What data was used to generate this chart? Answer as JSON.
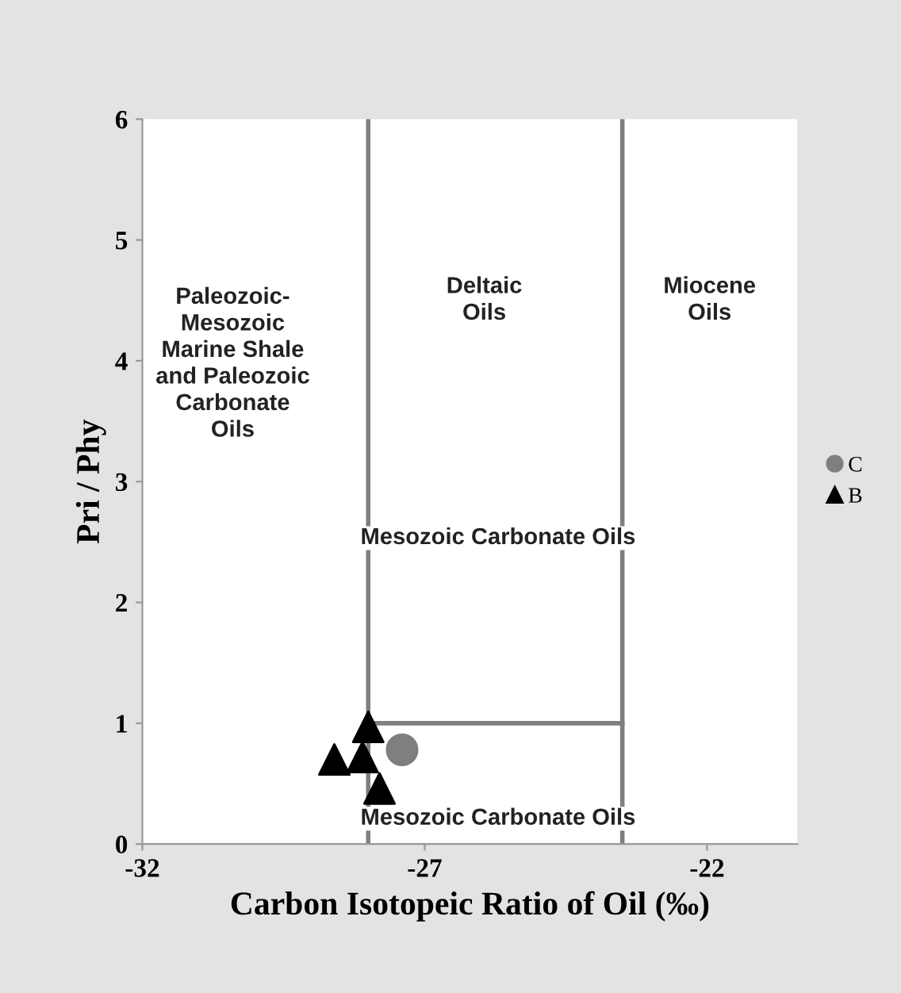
{
  "chart_data": {
    "type": "scatter",
    "xlabel": "Carbon Isotopeic Ratio of Oil (‰)",
    "ylabel": "Pri / Phy",
    "series": [
      {
        "name": "C",
        "color": "#7f7f7f",
        "marker": "circle",
        "x": [
          -27.4
        ],
        "values": [
          0.78
        ]
      },
      {
        "name": "B",
        "color": "#000000",
        "marker": "triangle",
        "x": [
          -28.0,
          -28.6,
          -28.1,
          -27.8
        ],
        "values": [
          0.97,
          0.7,
          0.72,
          0.46
        ]
      },
      {
        "type": "line",
        "color": "#7f7f7f",
        "marker": "none",
        "x": [
          -28.0,
          -23.5
        ],
        "values": [
          1.0,
          1.0
        ]
      }
    ],
    "ref_lines": [
      {
        "axis": "x",
        "value": -28.0,
        "color": "#7f7f7f"
      },
      {
        "axis": "x",
        "value": -23.5,
        "color": "#7f7f7f"
      }
    ],
    "annotations": [
      "Paleozoic-\nMesozoic\nMarine Shale\nand Paleozoic\nCarbonate\nOils",
      "Deltaic\nOils",
      "Miocene\nOils",
      "Mesozoic Carbonate Oils",
      "Mesozoic Carbonate Oils"
    ],
    "xlim": [
      -32,
      -20.4
    ],
    "ylim": [
      0,
      6
    ],
    "xticks": [
      -32,
      -27,
      -22
    ],
    "yticks": [
      0,
      1,
      2,
      3,
      4,
      5,
      6
    ],
    "grid": false,
    "legend": "right"
  }
}
